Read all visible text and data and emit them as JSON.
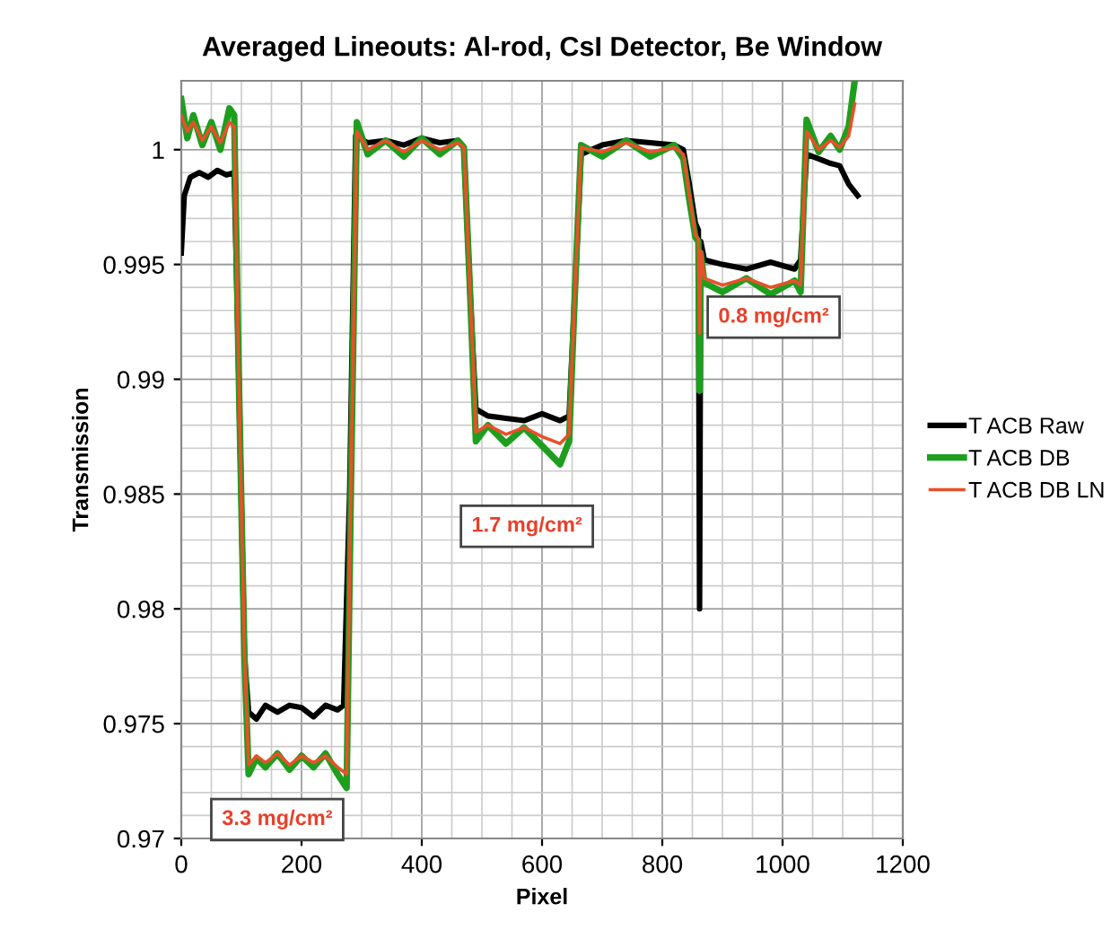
{
  "chart_data": {
    "type": "line",
    "title": "Averaged Lineouts: Al-rod, CsI Detector, Be Window",
    "xlabel": "Pixel",
    "ylabel": "Transmission",
    "xlim": [
      0,
      1200
    ],
    "xticks": [
      0,
      200,
      400,
      600,
      800,
      1000,
      1200
    ],
    "ylim": [
      0.97,
      1.003
    ],
    "yticks": [
      0.97,
      0.975,
      0.98,
      0.985,
      0.99,
      0.995,
      1
    ],
    "grid": true,
    "legend": "right",
    "line_style": "solid",
    "marker": "none",
    "series": [
      {
        "name": "T ACB Raw",
        "color": "#000000",
        "x": [
          0,
          5,
          15,
          30,
          45,
          60,
          75,
          88,
          95,
          105,
          112,
          125,
          140,
          160,
          180,
          200,
          220,
          240,
          260,
          270,
          280,
          290,
          310,
          340,
          370,
          400,
          430,
          460,
          470,
          480,
          490,
          510,
          540,
          570,
          600,
          630,
          645,
          655,
          665,
          700,
          740,
          780,
          820,
          835,
          845,
          855,
          860,
          862,
          864,
          870,
          900,
          940,
          980,
          1020,
          1030,
          1040,
          1060,
          1080,
          1095,
          1110,
          1125
        ],
        "values": [
          0.9955,
          0.998,
          0.9988,
          0.999,
          0.9988,
          0.9991,
          0.9989,
          0.999,
          0.991,
          0.978,
          0.9755,
          0.9752,
          0.9758,
          0.9755,
          0.9758,
          0.9757,
          0.9753,
          0.9758,
          0.9756,
          0.9758,
          0.985,
          1.0006,
          1.0003,
          1.0004,
          1.0002,
          1.0005,
          1.0003,
          1.0004,
          1.0001,
          0.994,
          0.9887,
          0.9884,
          0.9883,
          0.9882,
          0.9885,
          0.9882,
          0.9884,
          0.994,
          0.9998,
          1.0002,
          1.0004,
          1.0003,
          1.0002,
          1.0,
          0.9985,
          0.9968,
          0.9965,
          0.98,
          0.996,
          0.9952,
          0.995,
          0.9948,
          0.9951,
          0.9948,
          0.9952,
          0.9998,
          0.9996,
          0.9994,
          0.9993,
          0.9985,
          0.998
        ]
      },
      {
        "name": "T ACB DB",
        "color": "#1e9e1e",
        "x": [
          0,
          10,
          20,
          35,
          50,
          65,
          80,
          88,
          95,
          105,
          112,
          125,
          140,
          160,
          180,
          200,
          220,
          240,
          260,
          275,
          282,
          292,
          310,
          340,
          370,
          400,
          430,
          460,
          470,
          480,
          490,
          510,
          540,
          570,
          600,
          630,
          645,
          655,
          665,
          700,
          740,
          780,
          820,
          835,
          845,
          855,
          860,
          862,
          864,
          870,
          900,
          940,
          980,
          1020,
          1030,
          1040,
          1060,
          1080,
          1095,
          1110,
          1120
        ],
        "values": [
          1.0022,
          1.0005,
          1.0015,
          1.0002,
          1.0012,
          1.0,
          1.0018,
          1.0015,
          0.991,
          0.978,
          0.9728,
          0.9735,
          0.9731,
          0.9737,
          0.973,
          0.9736,
          0.9731,
          0.9737,
          0.9728,
          0.9722,
          0.985,
          1.0012,
          0.9998,
          1.0004,
          0.9997,
          1.0005,
          0.9998,
          1.0004,
          1.0001,
          0.994,
          0.9873,
          0.988,
          0.9872,
          0.9879,
          0.9871,
          0.9863,
          0.9873,
          0.994,
          1.0002,
          0.9997,
          1.0004,
          0.9997,
          1.0002,
          0.9996,
          0.9978,
          0.9962,
          0.996,
          0.9895,
          0.9955,
          0.9942,
          0.9938,
          0.9944,
          0.9937,
          0.9943,
          0.9938,
          1.0013,
          0.9999,
          1.0006,
          1.0,
          1.001,
          1.003
        ]
      },
      {
        "name": "T ACB DB LN",
        "color": "#e8502a",
        "x": [
          0,
          10,
          20,
          35,
          50,
          65,
          80,
          88,
          95,
          105,
          112,
          125,
          140,
          160,
          180,
          200,
          220,
          240,
          260,
          275,
          282,
          292,
          310,
          340,
          370,
          400,
          430,
          460,
          470,
          480,
          490,
          510,
          540,
          570,
          600,
          630,
          645,
          655,
          665,
          700,
          740,
          780,
          820,
          835,
          845,
          855,
          860,
          862,
          864,
          870,
          900,
          940,
          980,
          1020,
          1030,
          1040,
          1060,
          1080,
          1095,
          1110,
          1120
        ],
        "values": [
          1.0015,
          1.0008,
          1.0012,
          1.0004,
          1.001,
          1.0003,
          1.0012,
          1.001,
          0.991,
          0.978,
          0.9732,
          0.9736,
          0.9733,
          0.9737,
          0.9732,
          0.9736,
          0.9733,
          0.9736,
          0.9731,
          0.9728,
          0.985,
          1.0008,
          1.0,
          1.0004,
          0.9999,
          1.0004,
          1.0,
          1.0003,
          1.0001,
          0.994,
          0.9877,
          0.988,
          0.9876,
          0.9879,
          0.9875,
          0.9872,
          0.9876,
          0.994,
          1.0001,
          0.9999,
          1.0003,
          0.9999,
          1.0001,
          0.9998,
          0.998,
          0.9963,
          0.9961,
          0.992,
          0.9956,
          0.9944,
          0.9941,
          0.9944,
          0.994,
          0.9943,
          0.9941,
          1.0008,
          1.0,
          1.0004,
          1.0001,
          1.0006,
          1.002
        ]
      }
    ],
    "annotations": [
      "3.3 mg/cm²",
      "1.7 mg/cm²",
      "0.8 mg/cm²"
    ]
  }
}
